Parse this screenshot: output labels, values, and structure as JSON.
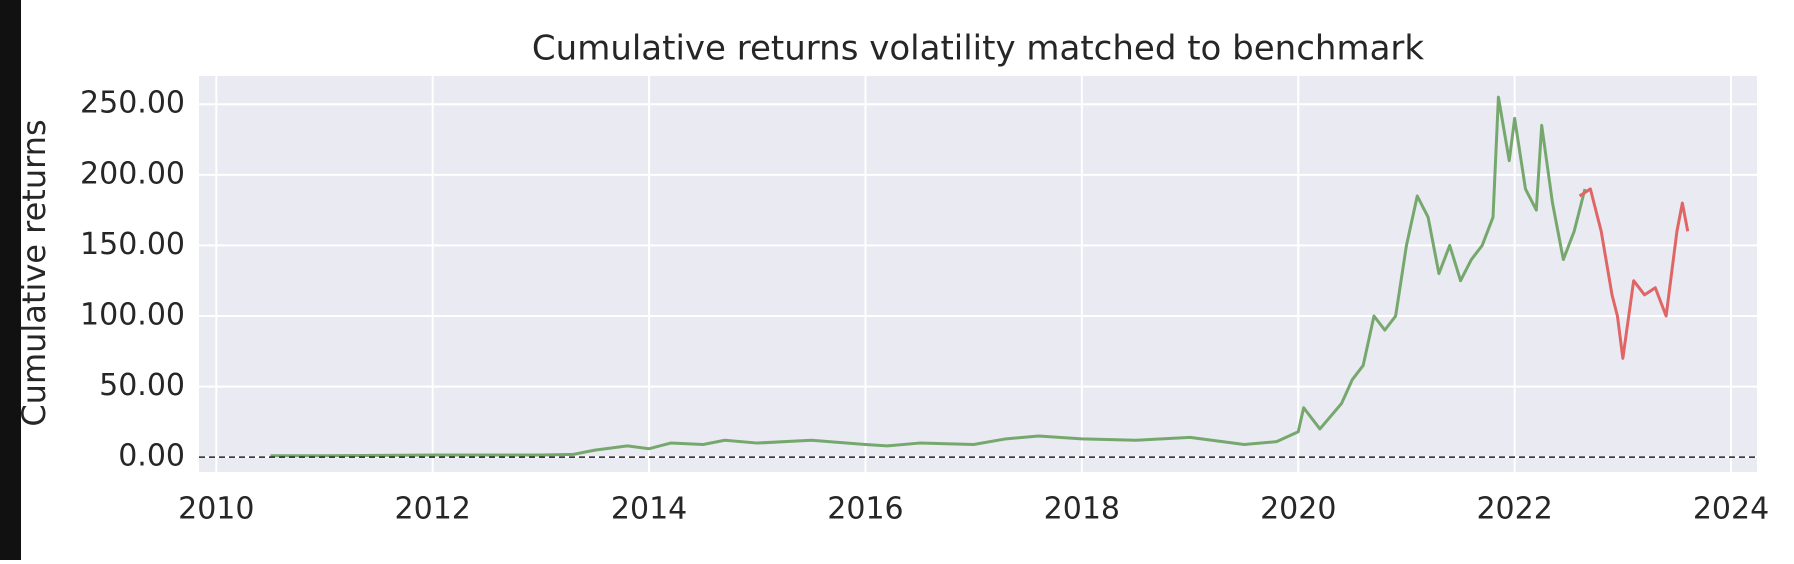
{
  "chart_data": {
    "type": "line",
    "title": "Cumulative returns volatility matched to benchmark",
    "y_label": "Cumulative returns",
    "xlim": [
      2009.84,
      2024.24
    ],
    "xticks": [
      2010,
      2012,
      2014,
      2016,
      2018,
      2020,
      2022,
      2024
    ],
    "ylim": [
      -10.5,
      270
    ],
    "yticks": [
      {
        "value": 0,
        "label": "0.00"
      },
      {
        "value": 50,
        "label": "50.00"
      },
      {
        "value": 100,
        "label": "100.00"
      },
      {
        "value": 150,
        "label": "150.00"
      },
      {
        "value": 200,
        "label": "200.00"
      },
      {
        "value": 250,
        "label": "250.00"
      }
    ],
    "grid": true,
    "baseline": 0,
    "series": [
      {
        "color": "#76a86e",
        "x": [
          2010.5,
          2011,
          2012,
          2013,
          2013.3,
          2013.5,
          2013.8,
          2014,
          2014.2,
          2014.5,
          2014.7,
          2015,
          2015.5,
          2016,
          2016.2,
          2016.5,
          2017,
          2017.3,
          2017.6,
          2018,
          2018.5,
          2019,
          2019.5,
          2019.8,
          2020,
          2020.05,
          2020.2,
          2020.4,
          2020.5,
          2020.6,
          2020.7,
          2020.8,
          2020.9,
          2021.0,
          2021.1,
          2021.2,
          2021.3,
          2021.4,
          2021.5,
          2021.6,
          2021.7,
          2021.8,
          2021.85,
          2021.95,
          2022.0,
          2022.1,
          2022.2,
          2022.25,
          2022.35,
          2022.45,
          2022.55,
          2022.65
        ],
        "values": [
          1,
          1,
          1.5,
          1.5,
          2,
          5,
          8,
          6,
          10,
          9,
          12,
          10,
          12,
          9,
          8,
          10,
          9,
          13,
          15,
          13,
          12,
          14,
          9,
          11,
          18,
          35,
          20,
          38,
          55,
          65,
          100,
          90,
          100,
          150,
          185,
          170,
          130,
          150,
          125,
          140,
          150,
          170,
          255,
          210,
          240,
          190,
          175,
          235,
          180,
          140,
          160,
          190
        ]
      },
      {
        "color": "#e06666",
        "x": [
          2022.6,
          2022.7,
          2022.8,
          2022.9,
          2022.95,
          2023.0,
          2023.1,
          2023.2,
          2023.3,
          2023.4,
          2023.5,
          2023.55,
          2023.6
        ],
        "values": [
          185,
          190,
          160,
          115,
          100,
          70,
          125,
          115,
          120,
          100,
          160,
          180,
          160
        ]
      }
    ]
  }
}
